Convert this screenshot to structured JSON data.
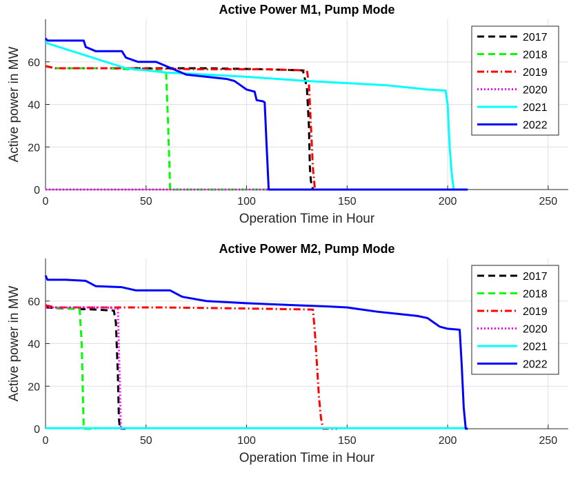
{
  "chart_data": [
    {
      "type": "line",
      "title": "Active Power M1, Pump Mode",
      "xlabel": "Operation Time in Hour",
      "ylabel": "Active power in MW",
      "xlim": [
        0,
        260
      ],
      "ylim": [
        0,
        80
      ],
      "xticks": [
        0,
        50,
        100,
        150,
        200,
        250
      ],
      "yticks": [
        0,
        20,
        40,
        60
      ],
      "grid": true,
      "legend_position": "top-right",
      "series": [
        {
          "name": "2017",
          "color": "#000000",
          "dash": "dashed",
          "points": [
            [
              0,
              58
            ],
            [
              5,
              57
            ],
            [
              40,
              57
            ],
            [
              80,
              57
            ],
            [
              110,
              56.5
            ],
            [
              128,
              56
            ],
            [
              130,
              48
            ],
            [
              131,
              30
            ],
            [
              131.5,
              10
            ],
            [
              132,
              4
            ],
            [
              133,
              0
            ],
            [
              140,
              0
            ]
          ]
        },
        {
          "name": "2018",
          "color": "#00ff00",
          "dash": "dashed",
          "points": [
            [
              0,
              58
            ],
            [
              5,
              57
            ],
            [
              30,
              57
            ],
            [
              55,
              56
            ],
            [
              60,
              55
            ],
            [
              61,
              30
            ],
            [
              62,
              0
            ],
            [
              210,
              0
            ]
          ]
        },
        {
          "name": "2019",
          "color": "#ff0000",
          "dash": "dashdot",
          "points": [
            [
              0,
              58
            ],
            [
              5,
              57
            ],
            [
              40,
              57
            ],
            [
              80,
              56.5
            ],
            [
              110,
              56.5
            ],
            [
              130,
              56
            ],
            [
              131,
              50
            ],
            [
              132,
              30
            ],
            [
              133,
              10
            ],
            [
              134,
              0
            ],
            [
              140,
              0
            ]
          ]
        },
        {
          "name": "2020",
          "color": "#ff00ff",
          "dash": "dotted",
          "points": [
            [
              0,
              0
            ],
            [
              210,
              0
            ]
          ]
        },
        {
          "name": "2021",
          "color": "#00ffff",
          "dash": "solid",
          "points": [
            [
              0,
              69
            ],
            [
              10,
              66
            ],
            [
              20,
              63
            ],
            [
              30,
              60
            ],
            [
              40,
              57
            ],
            [
              60,
              55
            ],
            [
              80,
              54
            ],
            [
              100,
              53
            ],
            [
              130,
              51
            ],
            [
              150,
              50
            ],
            [
              170,
              49
            ],
            [
              190,
              47
            ],
            [
              199,
              46.5
            ],
            [
              200,
              40
            ],
            [
              201,
              20
            ],
            [
              202,
              8
            ],
            [
              203,
              0
            ],
            [
              210,
              0
            ]
          ]
        },
        {
          "name": "2022",
          "color": "#0000ff",
          "dash": "solid",
          "points": [
            [
              0,
              71
            ],
            [
              1,
              70
            ],
            [
              10,
              70
            ],
            [
              19,
              70
            ],
            [
              20,
              67
            ],
            [
              25,
              65
            ],
            [
              38,
              65
            ],
            [
              40,
              62
            ],
            [
              46,
              60
            ],
            [
              55,
              60
            ],
            [
              60,
              58
            ],
            [
              65,
              56
            ],
            [
              70,
              54
            ],
            [
              80,
              53
            ],
            [
              90,
              52
            ],
            [
              94,
              51
            ],
            [
              97,
              49
            ],
            [
              100,
              47
            ],
            [
              104,
              46
            ],
            [
              105,
              42
            ],
            [
              108,
              41.5
            ],
            [
              109,
              41
            ],
            [
              110,
              20
            ],
            [
              111,
              0
            ],
            [
              210,
              0
            ]
          ]
        }
      ]
    },
    {
      "type": "line",
      "title": "Active Power M2, Pump Mode",
      "xlabel": "Operation Time in Hour",
      "ylabel": "Active power in MW",
      "xlim": [
        0,
        260
      ],
      "ylim": [
        0,
        80
      ],
      "xticks": [
        0,
        50,
        100,
        150,
        200,
        250
      ],
      "yticks": [
        0,
        20,
        40,
        60
      ],
      "grid": true,
      "legend_position": "top-right",
      "series": [
        {
          "name": "2017",
          "color": "#000000",
          "dash": "dashed",
          "points": [
            [
              0,
              57
            ],
            [
              10,
              56.5
            ],
            [
              25,
              56
            ],
            [
              34,
              55.5
            ],
            [
              35,
              50
            ],
            [
              36,
              25
            ],
            [
              36.5,
              5
            ],
            [
              37,
              0
            ],
            [
              40,
              0
            ]
          ]
        },
        {
          "name": "2018",
          "color": "#00ff00",
          "dash": "dashed",
          "points": [
            [
              0,
              58
            ],
            [
              5,
              57
            ],
            [
              17,
              56
            ],
            [
              18,
              40
            ],
            [
              19,
              0
            ],
            [
              25,
              0
            ]
          ]
        },
        {
          "name": "2019",
          "color": "#ff0000",
          "dash": "dashdot",
          "points": [
            [
              0,
              58
            ],
            [
              5,
              57
            ],
            [
              30,
              57
            ],
            [
              60,
              57
            ],
            [
              100,
              56.5
            ],
            [
              133,
              56
            ],
            [
              134,
              45
            ],
            [
              135,
              30
            ],
            [
              136,
              15
            ],
            [
              137,
              5
            ],
            [
              138,
              0
            ],
            [
              145,
              0
            ]
          ]
        },
        {
          "name": "2020",
          "color": "#ff00ff",
          "dash": "dotted",
          "points": [
            [
              0,
              57
            ],
            [
              10,
              57
            ],
            [
              30,
              57
            ],
            [
              36,
              56.5
            ],
            [
              37,
              20
            ],
            [
              37.5,
              0
            ],
            [
              40,
              0
            ]
          ]
        },
        {
          "name": "2021",
          "color": "#00ffff",
          "dash": "solid",
          "points": [
            [
              0,
              0.3
            ],
            [
              210,
              0.3
            ]
          ]
        },
        {
          "name": "2022",
          "color": "#0000ff",
          "dash": "solid",
          "points": [
            [
              0,
              72
            ],
            [
              1,
              70
            ],
            [
              10,
              70
            ],
            [
              20,
              69.5
            ],
            [
              25,
              67
            ],
            [
              38,
              66.5
            ],
            [
              45,
              65
            ],
            [
              62,
              65
            ],
            [
              68,
              62
            ],
            [
              80,
              60
            ],
            [
              100,
              59
            ],
            [
              125,
              58
            ],
            [
              140,
              57.5
            ],
            [
              150,
              57
            ],
            [
              165,
              55
            ],
            [
              175,
              54
            ],
            [
              185,
              53
            ],
            [
              190,
              52
            ],
            [
              193,
              50
            ],
            [
              196,
              48
            ],
            [
              200,
              47
            ],
            [
              206,
              46.5
            ],
            [
              207,
              30
            ],
            [
              208,
              10
            ],
            [
              209,
              0
            ],
            [
              210,
              0
            ]
          ]
        }
      ]
    }
  ]
}
